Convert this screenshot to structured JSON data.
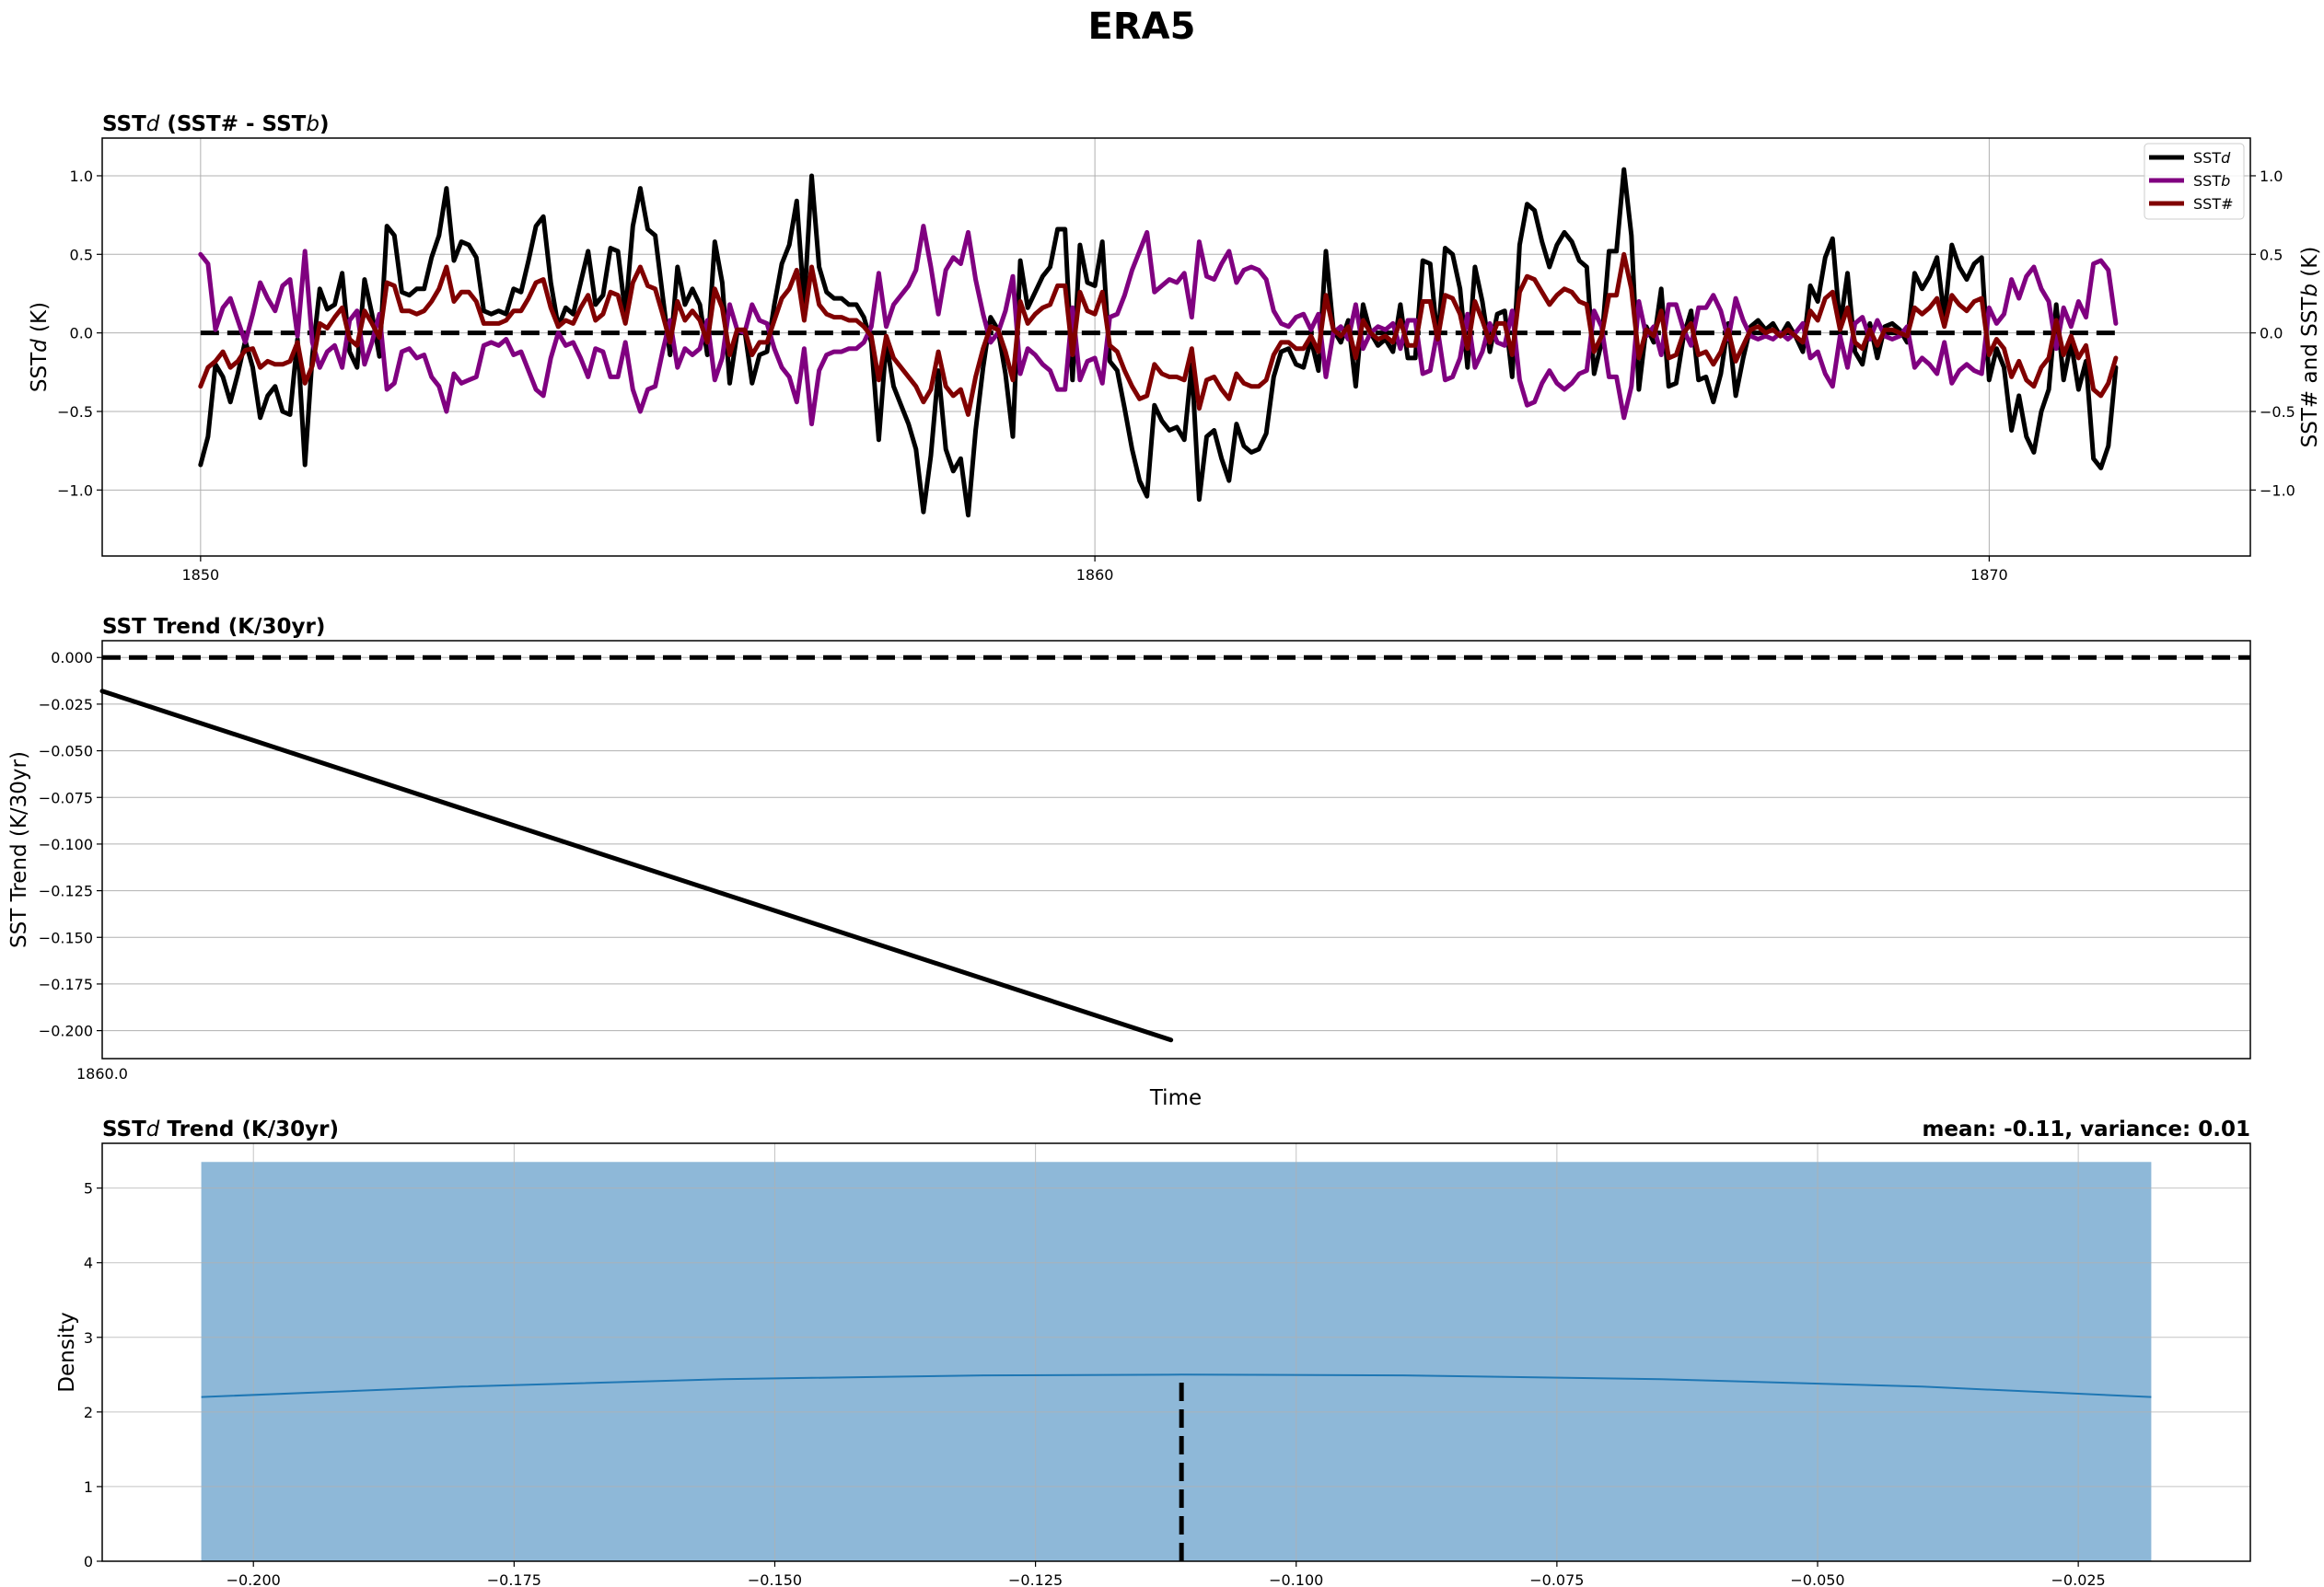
{
  "figure": {
    "suptitle": "ERA5"
  },
  "colors": {
    "sstd": "#000000",
    "sstb": "#800080",
    "ssth": "#800000",
    "hist_fill": "#8eb8d8",
    "kde": "#1f77b4",
    "grid": "#b0b0b0"
  },
  "chart_data": [
    {
      "type": "line",
      "title": "SSTd (SST# - SSTb)",
      "title_parts": {
        "p1": "SST",
        "p2": "d",
        "p3": " (SST# - SST",
        "p4": "b",
        "p5": ")"
      },
      "ylabel_left": {
        "p1": "SST",
        "p2": "d",
        "p3": " (K)"
      },
      "ylabel_right": {
        "p1": "SST# and SST",
        "p2": "b",
        "p3": " (K)"
      },
      "xlim": [
        1848.9,
        1872.92
      ],
      "ylim": [
        -1.42,
        1.24
      ],
      "xticks": [
        1850,
        1860,
        1870
      ],
      "xtick_labels": [
        "1850",
        "1860",
        "1870"
      ],
      "yticks": [
        -1.0,
        -0.5,
        0.0,
        0.5,
        1.0
      ],
      "ytick_labels": [
        "−1.0",
        "−0.5",
        "0.0",
        "0.5",
        "1.0"
      ],
      "grid": true,
      "legend_position": "top-right",
      "x_start": 1850,
      "x_step": 0.08333,
      "zero_line": 0,
      "legend": [
        {
          "p1": "SST",
          "p2": "d"
        },
        {
          "p1": "SST",
          "p2": "b"
        },
        {
          "p1": "SST#",
          "p2": ""
        }
      ],
      "series": [
        {
          "name": "SSTd",
          "values": [
            -0.84,
            -0.66,
            -0.2,
            -0.28,
            -0.44,
            -0.26,
            -0.05,
            -0.22,
            -0.54,
            -0.4,
            -0.34,
            -0.5,
            -0.52,
            -0.04,
            -0.84,
            -0.15,
            0.28,
            0.15,
            0.18,
            0.38,
            -0.12,
            -0.22,
            0.34,
            0.12,
            -0.15,
            0.68,
            0.62,
            0.26,
            0.24,
            0.28,
            0.28,
            0.48,
            0.62,
            0.92,
            0.46,
            0.58,
            0.56,
            0.48,
            0.14,
            0.12,
            0.14,
            0.12,
            0.28,
            0.26,
            0.46,
            0.68,
            0.74,
            0.32,
            0.04,
            0.16,
            0.12,
            0.32,
            0.52,
            0.18,
            0.24,
            0.54,
            0.52,
            0.12,
            0.68,
            0.92,
            0.66,
            0.62,
            0.24,
            -0.14,
            0.42,
            0.18,
            0.28,
            0.18,
            -0.14,
            0.58,
            0.32,
            -0.32,
            0.0,
            0.02,
            -0.32,
            -0.14,
            -0.12,
            0.18,
            0.44,
            0.56,
            0.84,
            0.18,
            1.0,
            0.42,
            0.26,
            0.22,
            0.22,
            0.18,
            0.18,
            0.1,
            -0.06,
            -0.68,
            -0.06,
            -0.34,
            -0.46,
            -0.58,
            -0.74,
            -1.14,
            -0.78,
            -0.24,
            -0.74,
            -0.88,
            -0.8,
            -1.16,
            -0.62,
            -0.22,
            0.1,
            0.02,
            -0.26,
            -0.66,
            0.46,
            0.16,
            0.26,
            0.36,
            0.42,
            0.66,
            0.66,
            -0.3,
            0.56,
            0.32,
            0.3,
            0.58,
            -0.18,
            -0.24,
            -0.48,
            -0.74,
            -0.94,
            -1.04,
            -0.46,
            -0.56,
            -0.62,
            -0.6,
            -0.68,
            -0.2,
            -1.06,
            -0.66,
            -0.62,
            -0.8,
            -0.94,
            -0.58,
            -0.72,
            -0.76,
            -0.74,
            -0.64,
            -0.28,
            -0.12,
            -0.1,
            -0.2,
            -0.22,
            -0.04,
            -0.24,
            0.52,
            0.02,
            -0.06,
            0.08,
            -0.34,
            0.18,
            0.0,
            -0.08,
            -0.04,
            -0.12,
            0.18,
            -0.16,
            -0.16,
            0.46,
            0.44,
            -0.06,
            0.54,
            0.5,
            0.28,
            -0.22,
            0.42,
            0.2,
            -0.12,
            0.12,
            0.14,
            -0.28,
            0.56,
            0.82,
            0.78,
            0.58,
            0.42,
            0.56,
            0.64,
            0.58,
            0.46,
            0.42,
            -0.26,
            -0.06,
            0.52,
            0.52,
            1.04,
            0.62,
            -0.36,
            0.04,
            -0.06,
            0.28,
            -0.34,
            -0.32,
            -0.02,
            0.14,
            -0.3,
            -0.28,
            -0.44,
            -0.26,
            0.06,
            -0.4,
            -0.16,
            0.04,
            0.08,
            0.02,
            0.06,
            -0.02,
            0.06,
            -0.02,
            -0.12,
            0.3,
            0.2,
            0.48,
            0.6,
            0.04,
            0.38,
            -0.12,
            -0.2,
            0.06,
            -0.16,
            0.04,
            0.06,
            0.02,
            -0.06,
            0.38,
            0.28,
            0.36,
            0.48,
            0.1,
            0.56,
            0.42,
            0.34,
            0.44,
            0.48,
            -0.3,
            -0.1,
            -0.22,
            -0.62,
            -0.4,
            -0.66,
            -0.76,
            -0.5,
            -0.36,
            0.18,
            -0.3,
            -0.06,
            -0.36,
            -0.18,
            -0.8,
            -0.86,
            -0.72,
            -0.22
          ]
        },
        {
          "name": "SSTb",
          "values": [
            0.5,
            0.44,
            0.02,
            0.16,
            0.22,
            0.08,
            -0.06,
            0.12,
            0.32,
            0.22,
            0.14,
            0.3,
            0.34,
            -0.02,
            0.52,
            -0.06,
            -0.22,
            -0.12,
            -0.08,
            -0.22,
            0.08,
            0.14,
            -0.2,
            -0.06,
            0.12,
            -0.36,
            -0.32,
            -0.12,
            -0.1,
            -0.16,
            -0.14,
            -0.28,
            -0.34,
            -0.5,
            -0.26,
            -0.32,
            -0.3,
            -0.28,
            -0.08,
            -0.06,
            -0.08,
            -0.04,
            -0.14,
            -0.12,
            -0.24,
            -0.36,
            -0.4,
            -0.16,
            0.0,
            -0.08,
            -0.06,
            -0.16,
            -0.28,
            -0.1,
            -0.12,
            -0.28,
            -0.28,
            -0.06,
            -0.36,
            -0.5,
            -0.36,
            -0.34,
            -0.12,
            0.08,
            -0.22,
            -0.1,
            -0.14,
            -0.1,
            0.08,
            -0.3,
            -0.16,
            0.18,
            0.02,
            0.0,
            0.18,
            0.08,
            0.06,
            -0.1,
            -0.22,
            -0.28,
            -0.44,
            -0.1,
            -0.58,
            -0.24,
            -0.14,
            -0.12,
            -0.12,
            -0.1,
            -0.1,
            -0.06,
            0.04,
            0.38,
            0.04,
            0.18,
            0.24,
            0.3,
            0.4,
            0.68,
            0.42,
            0.12,
            0.4,
            0.48,
            0.44,
            0.64,
            0.34,
            0.12,
            -0.06,
            0.0,
            0.14,
            0.36,
            -0.26,
            -0.1,
            -0.14,
            -0.2,
            -0.24,
            -0.36,
            -0.36,
            0.16,
            -0.3,
            -0.18,
            -0.16,
            -0.32,
            0.1,
            0.12,
            0.24,
            0.4,
            0.52,
            0.64,
            0.26,
            0.3,
            0.34,
            0.32,
            0.38,
            0.1,
            0.58,
            0.36,
            0.34,
            0.44,
            0.52,
            0.32,
            0.4,
            0.42,
            0.4,
            0.34,
            0.14,
            0.06,
            0.04,
            0.1,
            0.12,
            0.02,
            0.12,
            -0.28,
            0.0,
            0.04,
            -0.04,
            0.18,
            -0.1,
            0.0,
            0.04,
            0.02,
            0.06,
            -0.1,
            0.08,
            0.08,
            -0.26,
            -0.24,
            0.02,
            -0.3,
            -0.28,
            -0.16,
            0.12,
            -0.22,
            -0.12,
            0.06,
            -0.06,
            -0.08,
            0.14,
            -0.3,
            -0.46,
            -0.44,
            -0.32,
            -0.24,
            -0.32,
            -0.36,
            -0.32,
            -0.26,
            -0.24,
            0.14,
            0.04,
            -0.28,
            -0.28,
            -0.54,
            -0.34,
            0.2,
            -0.02,
            0.04,
            -0.14,
            0.18,
            0.18,
            0.02,
            -0.08,
            0.16,
            0.16,
            0.24,
            0.14,
            -0.04,
            0.22,
            0.08,
            -0.02,
            -0.04,
            -0.02,
            -0.04,
            0.0,
            -0.04,
            0.0,
            0.06,
            -0.16,
            -0.12,
            -0.26,
            -0.34,
            -0.02,
            -0.22,
            0.06,
            0.1,
            -0.04,
            0.08,
            -0.02,
            -0.04,
            -0.02,
            0.04,
            -0.22,
            -0.16,
            -0.2,
            -0.26,
            -0.06,
            -0.32,
            -0.24,
            -0.2,
            -0.24,
            -0.26,
            0.16,
            0.06,
            0.12,
            0.34,
            0.22,
            0.36,
            0.42,
            0.28,
            0.2,
            -0.1,
            0.16,
            0.04,
            0.2,
            0.1,
            0.44,
            0.46,
            0.4,
            0.06
          ]
        },
        {
          "name": "SST#",
          "values": [
            -0.34,
            -0.22,
            -0.18,
            -0.12,
            -0.22,
            -0.18,
            -0.11,
            -0.1,
            -0.22,
            -0.18,
            -0.2,
            -0.2,
            -0.18,
            -0.06,
            -0.32,
            -0.21,
            0.06,
            0.03,
            0.1,
            0.16,
            -0.04,
            -0.08,
            0.14,
            0.06,
            -0.03,
            0.32,
            0.3,
            0.14,
            0.14,
            0.12,
            0.14,
            0.2,
            0.28,
            0.42,
            0.2,
            0.26,
            0.26,
            0.2,
            0.06,
            0.06,
            0.06,
            0.08,
            0.14,
            0.14,
            0.22,
            0.32,
            0.34,
            0.16,
            0.04,
            0.08,
            0.06,
            0.16,
            0.24,
            0.08,
            0.12,
            0.26,
            0.24,
            0.06,
            0.32,
            0.42,
            0.3,
            0.28,
            0.12,
            -0.06,
            0.2,
            0.08,
            0.14,
            0.08,
            -0.06,
            0.28,
            0.16,
            -0.14,
            0.02,
            0.02,
            -0.14,
            -0.06,
            -0.06,
            0.08,
            0.22,
            0.28,
            0.4,
            0.08,
            0.42,
            0.18,
            0.12,
            0.1,
            0.1,
            0.08,
            0.08,
            0.04,
            -0.02,
            -0.3,
            -0.02,
            -0.16,
            -0.22,
            -0.28,
            -0.34,
            -0.44,
            -0.36,
            -0.12,
            -0.34,
            -0.4,
            -0.36,
            -0.52,
            -0.28,
            -0.1,
            0.04,
            0.02,
            -0.12,
            -0.3,
            0.2,
            0.06,
            0.12,
            0.16,
            0.18,
            0.3,
            0.3,
            -0.14,
            0.26,
            0.14,
            0.12,
            0.26,
            -0.08,
            -0.12,
            -0.24,
            -0.34,
            -0.42,
            -0.4,
            -0.2,
            -0.26,
            -0.28,
            -0.28,
            -0.3,
            -0.1,
            -0.48,
            -0.3,
            -0.28,
            -0.36,
            -0.42,
            -0.26,
            -0.32,
            -0.34,
            -0.34,
            -0.3,
            -0.14,
            -0.06,
            -0.06,
            -0.1,
            -0.1,
            -0.02,
            -0.12,
            0.24,
            0.02,
            -0.02,
            0.04,
            -0.16,
            0.08,
            0.0,
            -0.04,
            -0.02,
            -0.06,
            0.08,
            -0.08,
            -0.08,
            0.2,
            0.2,
            -0.04,
            0.24,
            0.22,
            0.12,
            -0.1,
            0.2,
            0.08,
            -0.06,
            0.06,
            0.06,
            -0.14,
            0.26,
            0.36,
            0.34,
            0.26,
            0.18,
            0.24,
            0.28,
            0.26,
            0.2,
            0.18,
            -0.12,
            -0.02,
            0.24,
            0.24,
            0.5,
            0.28,
            -0.16,
            0.02,
            -0.02,
            0.14,
            -0.16,
            -0.14,
            0.0,
            0.06,
            -0.14,
            -0.12,
            -0.2,
            -0.12,
            0.02,
            -0.18,
            -0.08,
            0.02,
            0.04,
            0.0,
            0.02,
            -0.02,
            0.02,
            -0.02,
            -0.06,
            0.14,
            0.08,
            0.22,
            0.26,
            0.02,
            0.16,
            -0.06,
            -0.1,
            0.02,
            -0.08,
            0.02,
            0.02,
            0.0,
            -0.02,
            0.16,
            0.12,
            0.16,
            0.22,
            0.04,
            0.24,
            0.18,
            0.14,
            0.2,
            0.22,
            -0.14,
            -0.04,
            -0.1,
            -0.28,
            -0.18,
            -0.3,
            -0.34,
            -0.22,
            -0.16,
            0.08,
            -0.14,
            -0.02,
            -0.16,
            -0.08,
            -0.36,
            -0.4,
            -0.32,
            -0.16
          ]
        }
      ]
    },
    {
      "type": "line",
      "title": "SST Trend (K/30yr)",
      "xlabel": "Time",
      "ylabel": "SST Trend (K/30yr)",
      "xlim": [
        1860.0,
        1864.0
      ],
      "ylim": [
        -0.215,
        0.009
      ],
      "xtick_labels": [
        "1860.0"
      ],
      "yticks": [
        0.0,
        -0.025,
        -0.05,
        -0.075,
        -0.1,
        -0.125,
        -0.15,
        -0.175,
        -0.2
      ],
      "ytick_labels": [
        "0.000",
        "−0.025",
        "−0.050",
        "−0.075",
        "−0.100",
        "−0.125",
        "−0.150",
        "−0.175",
        "−0.200"
      ],
      "grid": true,
      "zero_line": 0,
      "series": [
        {
          "x": [
            1860.0,
            1861.99
          ],
          "values": [
            -0.018,
            -0.205
          ]
        }
      ]
    },
    {
      "type": "bar",
      "title": "SSTd Trend (K/30yr)",
      "title_parts": {
        "p1": "SST",
        "p2": "d",
        "p3": " Trend (K/30yr)"
      },
      "annotation": "mean: -0.11, variance: 0.01",
      "ylabel": "Density",
      "xlim": [
        -0.2145,
        -0.0085
      ],
      "ylim": [
        0,
        5.6
      ],
      "xticks": [
        -0.2,
        -0.175,
        -0.15,
        -0.125,
        -0.1,
        -0.075,
        -0.05,
        -0.025
      ],
      "xtick_labels": [
        "−0.200",
        "−0.175",
        "−0.150",
        "−0.125",
        "−0.100",
        "−0.075",
        "−0.050",
        "−0.025"
      ],
      "yticks": [
        0,
        1,
        2,
        3,
        4,
        5
      ],
      "ytick_labels": [
        "0",
        "1",
        "2",
        "3",
        "4",
        "5"
      ],
      "grid": true,
      "histogram": {
        "bin_start": -0.205,
        "bin_end": -0.018,
        "density": 5.35
      },
      "kde": {
        "x": [
          -0.205,
          -0.18,
          -0.155,
          -0.13,
          -0.111,
          -0.09,
          -0.065,
          -0.04,
          -0.018
        ],
        "values": [
          2.2,
          2.34,
          2.44,
          2.49,
          2.5,
          2.49,
          2.44,
          2.34,
          2.2
        ]
      },
      "mean": -0.111,
      "mean_line_top": 2.5
    }
  ]
}
